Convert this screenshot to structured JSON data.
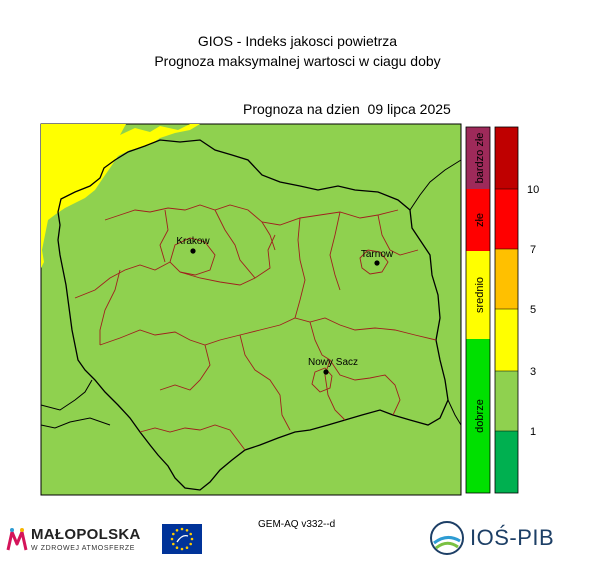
{
  "header": {
    "title": "GIOS - Indeks jakosci powietrza",
    "subtitle": "Prognoza maksymalnej wartosci w ciagu doby",
    "date_label": "Prognoza na dzien  09 lipca 2025"
  },
  "cities": [
    {
      "name": "Krakow"
    },
    {
      "name": "Tarnow"
    },
    {
      "name": "Nowy Sacz"
    }
  ],
  "category_legend": {
    "items": [
      {
        "label": "bardzo złe",
        "color": "#9e2a5a"
      },
      {
        "label": "złe",
        "color": "#ff0000"
      },
      {
        "label": "srednio",
        "color": "#ffff00"
      },
      {
        "label": "dobrze",
        "color": "#00e000"
      }
    ]
  },
  "scale_legend": {
    "colors": [
      "#bf0000",
      "#ff0000",
      "#ff8c00",
      "#ffc000",
      "#ffff00",
      "#8fd14f",
      "#00b050"
    ],
    "ticks": [
      "10",
      "7",
      "5",
      "3",
      "1"
    ]
  },
  "colors": {
    "good": "#8fd14f",
    "moderate": "#ffff00",
    "border": "#a0201e",
    "outline": "#000000"
  },
  "footer": {
    "model": "GEM-AQ v332--d",
    "logo_malopolska": "MAŁOPOLSKA",
    "logo_malopolska_sub": "W ZDROWEJ ATMOSFERZE",
    "logo_ios": "IOŚ-PIB",
    "eu_flag": "eu-flag-icon"
  }
}
